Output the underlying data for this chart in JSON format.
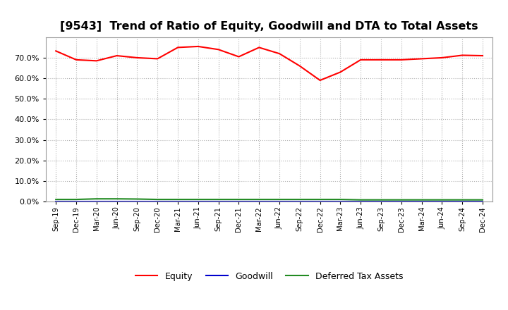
{
  "title": "[9543]  Trend of Ratio of Equity, Goodwill and DTA to Total Assets",
  "x_labels": [
    "Sep-19",
    "Dec-19",
    "Mar-20",
    "Jun-20",
    "Sep-20",
    "Dec-20",
    "Mar-21",
    "Jun-21",
    "Sep-21",
    "Dec-21",
    "Mar-22",
    "Jun-22",
    "Sep-22",
    "Dec-22",
    "Mar-23",
    "Jun-23",
    "Sep-23",
    "Dec-23",
    "Mar-24",
    "Jun-24",
    "Sep-24",
    "Dec-24"
  ],
  "equity": [
    0.733,
    0.69,
    0.685,
    0.71,
    0.7,
    0.695,
    0.75,
    0.755,
    0.74,
    0.705,
    0.75,
    0.72,
    0.66,
    0.59,
    0.63,
    0.69,
    0.69,
    0.69,
    0.695,
    0.7,
    0.712,
    0.71
  ],
  "goodwill": [
    0.0,
    0.0,
    0.0,
    0.0,
    0.0,
    0.0,
    0.0,
    0.0,
    0.0,
    0.0,
    0.0,
    0.0,
    0.0,
    0.0,
    0.0,
    0.0,
    0.0,
    0.0,
    0.0,
    0.0,
    0.0,
    0.0
  ],
  "dta": [
    0.01,
    0.01,
    0.013,
    0.013,
    0.012,
    0.01,
    0.01,
    0.01,
    0.01,
    0.01,
    0.01,
    0.01,
    0.01,
    0.01,
    0.01,
    0.008,
    0.008,
    0.008,
    0.008,
    0.008,
    0.008,
    0.008
  ],
  "equity_color": "#ff0000",
  "goodwill_color": "#0000cd",
  "dta_color": "#228b22",
  "ylim": [
    0.0,
    0.8
  ],
  "yticks": [
    0.0,
    0.1,
    0.2,
    0.3,
    0.4,
    0.5,
    0.6,
    0.7
  ],
  "background_color": "#ffffff",
  "plot_bg_color": "#ffffff",
  "grid_color": "#b0b0b0",
  "title_fontsize": 11.5,
  "legend_labels": [
    "Equity",
    "Goodwill",
    "Deferred Tax Assets"
  ]
}
